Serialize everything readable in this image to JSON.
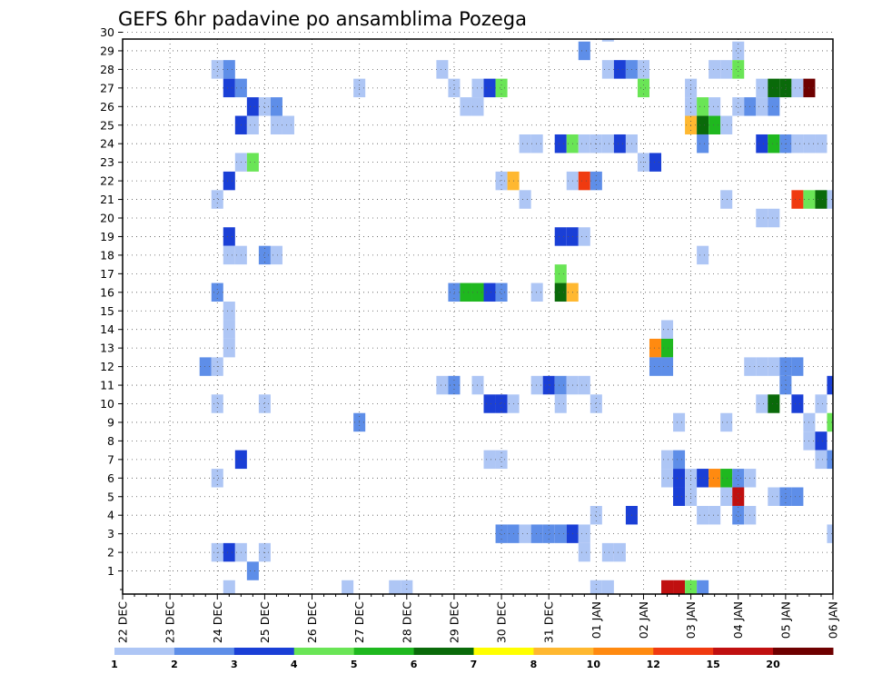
{
  "chart_data": {
    "type": "heatmap",
    "title": "GEFS 6hr padavine po ansamblima Pozega",
    "xlabel": "",
    "ylabel": "",
    "x_ticks": [
      "22 DEC",
      "23 DEC",
      "24 DEC",
      "25 DEC",
      "26 DEC",
      "27 DEC",
      "28 DEC",
      "29 DEC",
      "30 DEC",
      "31 DEC",
      "01 JAN",
      "02 JAN",
      "03 JAN",
      "04 JAN",
      "05 JAN",
      "06 JAN"
    ],
    "y_ticks": [
      "1",
      "2",
      "3",
      "4",
      "5",
      "6",
      "7",
      "8",
      "9",
      "10",
      "11",
      "12",
      "13",
      "14",
      "15",
      "16",
      "17",
      "18",
      "19",
      "20",
      "21",
      "22",
      "23",
      "24",
      "25",
      "26",
      "27",
      "28",
      "29",
      "30"
    ],
    "x_unit": "6-hour step from 22 DEC 00Z",
    "xlim": [
      0,
      60
    ],
    "ylim": [
      0,
      30
    ],
    "grid": true,
    "legend": {
      "position": "bottom",
      "labels": [
        "1",
        "2",
        "3",
        "4",
        "5",
        "6",
        "7",
        "8",
        "10",
        "12",
        "15",
        "20"
      ],
      "colors": [
        "#aec6f5",
        "#5e8ee8",
        "#1a3fd6",
        "#6ae556",
        "#1fb81f",
        "#0a6a0a",
        "#ffff00",
        "#ffb830",
        "#ff8a10",
        "#f03a10",
        "#c01010",
        "#6e0000"
      ]
    },
    "cells": [
      [
        41,
        30,
        1
      ],
      [
        39,
        29,
        2
      ],
      [
        52,
        29,
        1
      ],
      [
        8,
        28,
        1
      ],
      [
        9,
        28,
        2
      ],
      [
        27,
        28,
        1
      ],
      [
        41,
        28,
        1
      ],
      [
        42,
        28,
        3
      ],
      [
        43,
        28,
        2
      ],
      [
        44,
        28,
        1
      ],
      [
        50,
        28,
        1
      ],
      [
        51,
        28,
        1
      ],
      [
        52,
        28,
        4
      ],
      [
        9,
        27,
        3
      ],
      [
        10,
        27,
        2
      ],
      [
        20,
        27,
        1
      ],
      [
        28,
        27,
        1
      ],
      [
        30,
        27,
        1
      ],
      [
        31,
        27,
        3
      ],
      [
        32,
        27,
        4
      ],
      [
        44,
        27,
        4
      ],
      [
        48,
        27,
        1
      ],
      [
        54,
        27,
        1
      ],
      [
        55,
        27,
        6
      ],
      [
        56,
        27,
        6
      ],
      [
        57,
        27,
        1
      ],
      [
        58,
        27,
        12
      ],
      [
        11,
        26,
        3
      ],
      [
        12,
        26,
        1
      ],
      [
        13,
        26,
        2
      ],
      [
        29,
        26,
        1
      ],
      [
        30,
        26,
        1
      ],
      [
        48,
        26,
        1
      ],
      [
        49,
        26,
        4
      ],
      [
        50,
        26,
        1
      ],
      [
        52,
        26,
        1
      ],
      [
        53,
        26,
        2
      ],
      [
        54,
        26,
        1
      ],
      [
        55,
        26,
        2
      ],
      [
        10,
        25,
        3
      ],
      [
        11,
        25,
        1
      ],
      [
        13,
        25,
        1
      ],
      [
        14,
        25,
        1
      ],
      [
        48,
        25,
        8
      ],
      [
        49,
        25,
        6
      ],
      [
        50,
        25,
        5
      ],
      [
        51,
        25,
        1
      ],
      [
        34,
        24,
        1
      ],
      [
        35,
        24,
        1
      ],
      [
        37,
        24,
        3
      ],
      [
        38,
        24,
        4
      ],
      [
        39,
        24,
        1
      ],
      [
        40,
        24,
        1
      ],
      [
        41,
        24,
        1
      ],
      [
        42,
        24,
        3
      ],
      [
        43,
        24,
        1
      ],
      [
        49,
        24,
        2
      ],
      [
        54,
        24,
        3
      ],
      [
        55,
        24,
        5
      ],
      [
        56,
        24,
        2
      ],
      [
        57,
        24,
        1
      ],
      [
        58,
        24,
        1
      ],
      [
        59,
        24,
        1
      ],
      [
        10,
        23,
        1
      ],
      [
        11,
        23,
        4
      ],
      [
        44,
        23,
        1
      ],
      [
        45,
        23,
        3
      ],
      [
        9,
        22,
        3
      ],
      [
        32,
        22,
        1
      ],
      [
        33,
        22,
        8
      ],
      [
        38,
        22,
        1
      ],
      [
        39,
        22,
        10
      ],
      [
        40,
        22,
        2
      ],
      [
        8,
        21,
        1
      ],
      [
        34,
        21,
        1
      ],
      [
        51,
        21,
        1
      ],
      [
        57,
        21,
        10
      ],
      [
        58,
        21,
        4
      ],
      [
        59,
        21,
        6
      ],
      [
        60,
        21,
        1
      ],
      [
        54,
        20,
        1
      ],
      [
        55,
        20,
        1
      ],
      [
        9,
        19,
        3
      ],
      [
        37,
        19,
        3
      ],
      [
        38,
        19,
        3
      ],
      [
        39,
        19,
        1
      ],
      [
        9,
        18,
        1
      ],
      [
        10,
        18,
        1
      ],
      [
        12,
        18,
        2
      ],
      [
        13,
        18,
        1
      ],
      [
        49,
        18,
        1
      ],
      [
        37,
        17,
        4
      ],
      [
        8,
        16,
        2
      ],
      [
        28,
        16,
        2
      ],
      [
        29,
        16,
        5
      ],
      [
        30,
        16,
        5
      ],
      [
        31,
        16,
        3
      ],
      [
        32,
        16,
        2
      ],
      [
        35,
        16,
        1
      ],
      [
        37,
        16,
        6
      ],
      [
        38,
        16,
        8
      ],
      [
        9,
        15,
        1
      ],
      [
        9,
        14,
        1
      ],
      [
        46,
        14,
        1
      ],
      [
        9,
        13,
        1
      ],
      [
        45,
        13,
        9
      ],
      [
        46,
        13,
        5
      ],
      [
        7,
        12,
        2
      ],
      [
        8,
        12,
        1
      ],
      [
        45,
        12,
        2
      ],
      [
        46,
        12,
        2
      ],
      [
        53,
        12,
        1
      ],
      [
        54,
        12,
        1
      ],
      [
        55,
        12,
        1
      ],
      [
        56,
        12,
        2
      ],
      [
        57,
        12,
        2
      ],
      [
        27,
        11,
        1
      ],
      [
        28,
        11,
        2
      ],
      [
        30,
        11,
        1
      ],
      [
        35,
        11,
        1
      ],
      [
        36,
        11,
        3
      ],
      [
        37,
        11,
        2
      ],
      [
        38,
        11,
        1
      ],
      [
        39,
        11,
        1
      ],
      [
        56,
        11,
        2
      ],
      [
        60,
        11,
        3
      ],
      [
        8,
        10,
        1
      ],
      [
        12,
        10,
        1
      ],
      [
        31,
        10,
        3
      ],
      [
        32,
        10,
        3
      ],
      [
        33,
        10,
        1
      ],
      [
        37,
        10,
        1
      ],
      [
        40,
        10,
        1
      ],
      [
        54,
        10,
        1
      ],
      [
        55,
        10,
        6
      ],
      [
        57,
        10,
        3
      ],
      [
        59,
        10,
        1
      ],
      [
        20,
        9,
        2
      ],
      [
        47,
        9,
        1
      ],
      [
        51,
        9,
        1
      ],
      [
        58,
        9,
        1
      ],
      [
        60,
        9,
        4
      ],
      [
        58,
        8,
        1
      ],
      [
        59,
        8,
        3
      ],
      [
        10,
        7,
        3
      ],
      [
        31,
        7,
        1
      ],
      [
        32,
        7,
        1
      ],
      [
        46,
        7,
        1
      ],
      [
        47,
        7,
        2
      ],
      [
        59,
        7,
        1
      ],
      [
        60,
        7,
        2
      ],
      [
        8,
        6,
        1
      ],
      [
        46,
        6,
        1
      ],
      [
        47,
        6,
        3
      ],
      [
        48,
        6,
        1
      ],
      [
        49,
        6,
        3
      ],
      [
        50,
        6,
        9
      ],
      [
        51,
        6,
        5
      ],
      [
        52,
        6,
        2
      ],
      [
        53,
        6,
        1
      ],
      [
        47,
        5,
        3
      ],
      [
        48,
        5,
        1
      ],
      [
        51,
        5,
        1
      ],
      [
        52,
        5,
        11
      ],
      [
        55,
        5,
        1
      ],
      [
        56,
        5,
        2
      ],
      [
        57,
        5,
        2
      ],
      [
        40,
        4,
        1
      ],
      [
        43,
        4,
        3
      ],
      [
        49,
        4,
        1
      ],
      [
        50,
        4,
        1
      ],
      [
        52,
        4,
        2
      ],
      [
        53,
        4,
        1
      ],
      [
        32,
        3,
        2
      ],
      [
        33,
        3,
        2
      ],
      [
        34,
        3,
        1
      ],
      [
        35,
        3,
        2
      ],
      [
        36,
        3,
        2
      ],
      [
        37,
        3,
        2
      ],
      [
        38,
        3,
        3
      ],
      [
        39,
        3,
        1
      ],
      [
        60,
        3,
        1
      ],
      [
        8,
        2,
        1
      ],
      [
        9,
        2,
        3
      ],
      [
        10,
        2,
        1
      ],
      [
        12,
        2,
        1
      ],
      [
        39,
        2,
        1
      ],
      [
        41,
        2,
        1
      ],
      [
        42,
        2,
        1
      ],
      [
        11,
        1,
        2
      ],
      [
        9,
        0,
        1
      ],
      [
        19,
        0,
        1
      ],
      [
        23,
        0,
        1
      ],
      [
        24,
        0,
        1
      ],
      [
        40,
        0,
        1
      ],
      [
        41,
        0,
        1
      ],
      [
        46,
        0,
        11
      ],
      [
        47,
        0,
        11
      ],
      [
        48,
        0,
        4
      ],
      [
        49,
        0,
        2
      ]
    ]
  }
}
